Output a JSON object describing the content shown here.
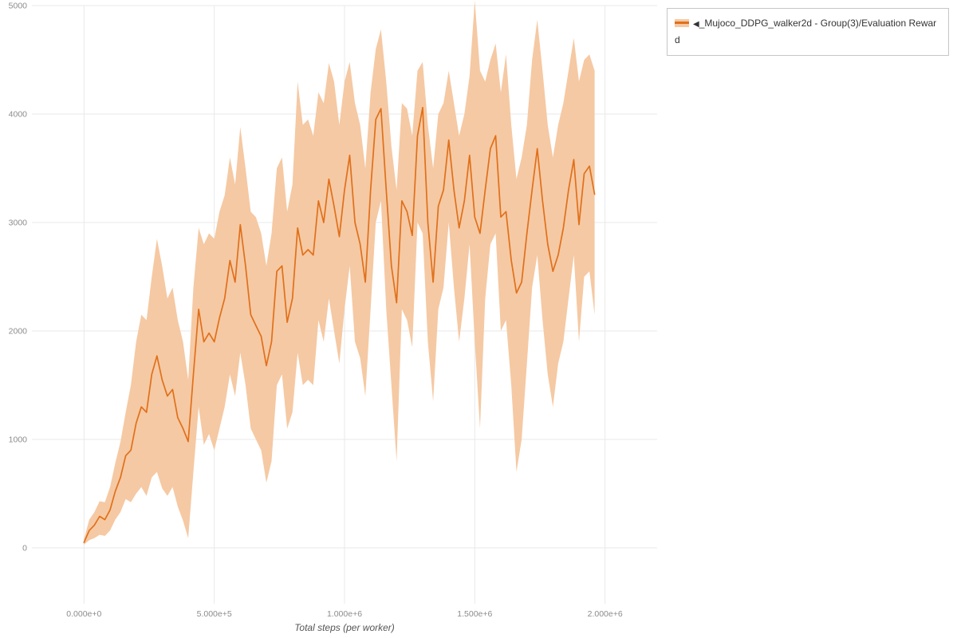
{
  "legend": {
    "collapse_icon": "◀",
    "label": "_Mujoco_DDPG_walker2d - Group(3)/Evaluation Reward"
  },
  "chart_data": {
    "type": "line",
    "title": "",
    "xlabel": "Total steps (per worker)",
    "ylabel": "",
    "grid": true,
    "legend_position": "top-right",
    "xlim": [
      -200000,
      2200000
    ],
    "ylim": [
      -515,
      5000
    ],
    "xtick_values": [
      0,
      500000,
      1000000,
      1500000,
      2000000
    ],
    "xtick_labels": [
      "0.000e+0",
      "5.000e+5",
      "1.000e+6",
      "1.500e+6",
      "2.000e+6"
    ],
    "ytick_values": [
      0,
      1000,
      2000,
      3000,
      4000,
      5000
    ],
    "ytick_labels": [
      "0",
      "1000",
      "2000",
      "3000",
      "4000",
      "5000"
    ],
    "series": [
      {
        "name": "_Mujoco_DDPG_walker2d - Group(3)/Evaluation Reward",
        "color": "#e0701b",
        "band_color": "#f5c9a3",
        "x": [
          0,
          20000,
          40000,
          60000,
          80000,
          100000,
          120000,
          140000,
          160000,
          180000,
          200000,
          220000,
          240000,
          260000,
          280000,
          300000,
          320000,
          340000,
          360000,
          380000,
          400000,
          420000,
          440000,
          460000,
          480000,
          500000,
          520000,
          540000,
          560000,
          580000,
          600000,
          620000,
          640000,
          660000,
          680000,
          700000,
          720000,
          740000,
          760000,
          780000,
          800000,
          820000,
          840000,
          860000,
          880000,
          900000,
          920000,
          940000,
          960000,
          980000,
          1000000,
          1020000,
          1040000,
          1060000,
          1080000,
          1100000,
          1120000,
          1140000,
          1160000,
          1180000,
          1200000,
          1220000,
          1240000,
          1260000,
          1280000,
          1300000,
          1320000,
          1340000,
          1360000,
          1380000,
          1400000,
          1420000,
          1440000,
          1460000,
          1480000,
          1500000,
          1520000,
          1540000,
          1560000,
          1580000,
          1600000,
          1620000,
          1640000,
          1660000,
          1680000,
          1700000,
          1720000,
          1740000,
          1760000,
          1780000,
          1800000,
          1820000,
          1840000,
          1860000,
          1880000,
          1900000,
          1920000,
          1940000,
          1960000
        ],
        "mean": [
          50,
          160,
          210,
          290,
          260,
          350,
          520,
          650,
          850,
          900,
          1150,
          1300,
          1250,
          1600,
          1770,
          1550,
          1400,
          1460,
          1200,
          1100,
          980,
          1600,
          2200,
          1900,
          1980,
          1900,
          2120,
          2300,
          2650,
          2450,
          2980,
          2600,
          2150,
          2050,
          1950,
          1680,
          1900,
          2550,
          2600,
          2080,
          2300,
          2950,
          2700,
          2750,
          2700,
          3200,
          3000,
          3400,
          3150,
          2870,
          3300,
          3620,
          3000,
          2800,
          2450,
          3300,
          3950,
          4050,
          3300,
          2600,
          2260,
          3200,
          3100,
          2880,
          3800,
          4060,
          3000,
          2450,
          3150,
          3300,
          3760,
          3300,
          2950,
          3200,
          3620,
          3050,
          2900,
          3300,
          3680,
          3800,
          3050,
          3100,
          2650,
          2350,
          2450,
          2900,
          3300,
          3680,
          3200,
          2800,
          2550,
          2700,
          2950,
          3300,
          3580,
          2980,
          3450,
          3520,
          3260
        ],
        "upper": [
          80,
          260,
          330,
          430,
          420,
          560,
          780,
          980,
          1250,
          1500,
          1900,
          2150,
          2100,
          2500,
          2850,
          2600,
          2300,
          2400,
          2100,
          1900,
          1550,
          2400,
          2950,
          2800,
          2900,
          2850,
          3100,
          3250,
          3600,
          3350,
          3880,
          3500,
          3100,
          3050,
          2900,
          2600,
          2900,
          3500,
          3600,
          3100,
          3350,
          4300,
          3900,
          3950,
          3800,
          4200,
          4100,
          4470,
          4300,
          3900,
          4300,
          4480,
          4100,
          3900,
          3500,
          4200,
          4600,
          4780,
          4300,
          3700,
          3300,
          4100,
          4050,
          3800,
          4400,
          4480,
          3900,
          3500,
          4000,
          4100,
          4400,
          4100,
          3800,
          4000,
          4350,
          5050,
          4400,
          4300,
          4500,
          4650,
          4200,
          4550,
          3900,
          3400,
          3600,
          3900,
          4500,
          4870,
          4400,
          3900,
          3600,
          3900,
          4100,
          4400,
          4700,
          4300,
          4500,
          4550,
          4400
        ],
        "lower": [
          30,
          70,
          90,
          120,
          110,
          160,
          260,
          330,
          450,
          420,
          500,
          560,
          480,
          650,
          700,
          550,
          480,
          560,
          380,
          250,
          90,
          700,
          1300,
          950,
          1050,
          900,
          1100,
          1300,
          1600,
          1400,
          1800,
          1500,
          1100,
          1000,
          900,
          600,
          800,
          1500,
          1600,
          1100,
          1250,
          1800,
          1500,
          1550,
          1500,
          2100,
          1900,
          2300,
          2000,
          1700,
          2200,
          2600,
          1900,
          1750,
          1400,
          2200,
          3000,
          3200,
          2200,
          1500,
          800,
          2200,
          2100,
          1850,
          3000,
          2900,
          1900,
          1350,
          2200,
          2400,
          3000,
          2400,
          1900,
          2300,
          2800,
          1900,
          1100,
          2300,
          2800,
          2900,
          2000,
          2100,
          1500,
          700,
          1000,
          1700,
          2400,
          2700,
          2100,
          1600,
          1300,
          1700,
          1900,
          2300,
          2700,
          1900,
          2500,
          2550,
          2150
        ]
      }
    ]
  }
}
